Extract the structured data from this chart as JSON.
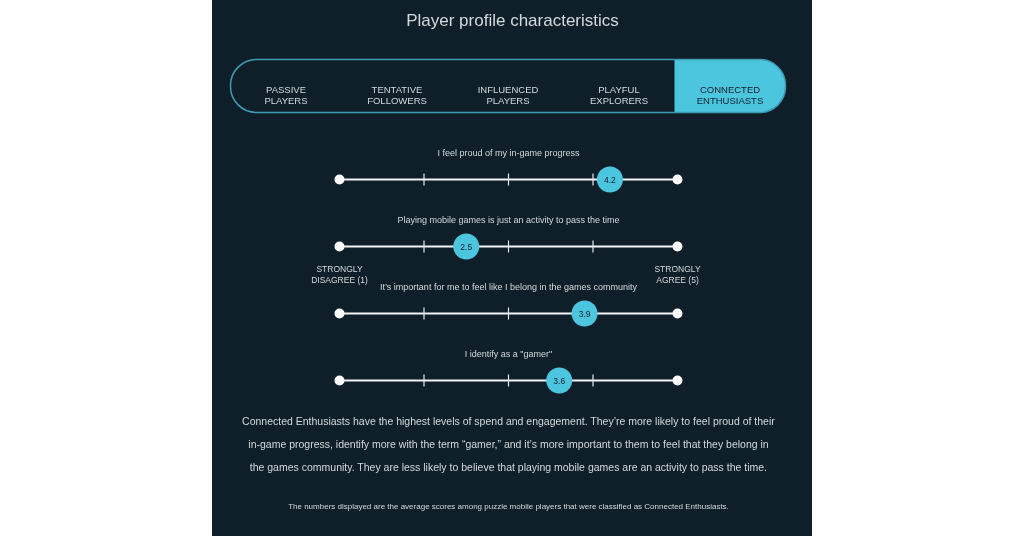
{
  "chart_data": [
    {
      "type": "other",
      "title": "Player profile characteristics",
      "categories": [
        "PASSIVE PLAYERS",
        "TENTATIVE FOLLOWERS",
        "INFLUENCED PLAYERS",
        "PLAYFUL EXPLORERS",
        "CONNECTED ENTHUSIASTS"
      ],
      "colors": [
        null,
        null,
        null,
        null,
        "#4cc6df"
      ]
    },
    {
      "type": "scatter",
      "orientation": "horizontal",
      "categories": [
        "I feel proud of my in-game progress",
        "Playing mobile games is just an activity to pass the time",
        "It’s important for me to feel like I belong in the games community",
        "I identify as a \"gamer\""
      ],
      "values": [
        4.2,
        2.5,
        3.9,
        3.6
      ],
      "color": "#4cc6df",
      "marker": "circle",
      "data_labels": true,
      "xlim": [
        1,
        5
      ],
      "xticks": [
        {
          "value": 1,
          "label": "STRONGLY DISAGREE (1)"
        },
        {
          "value": 2,
          "label": null
        },
        {
          "value": 3,
          "label": null
        },
        {
          "value": 4,
          "label": null
        },
        {
          "value": 5,
          "label": "STRONGLY AGREE (5)"
        }
      ],
      "grid": true,
      "annotations": [
        "Connected Enthusiasts have the highest levels of spend and engagement. They’re more likely to feel proud of their in-game progress, identify more with the term “gamer,” and it’s more important to them to feel that they belong in the games community. They are less likely to believe that playing mobile games are an activity to pass the time.",
        "The numbers displayed are the average scores among puzzle mobile players that were classified as Connected Enthusiasts."
      ]
    }
  ]
}
